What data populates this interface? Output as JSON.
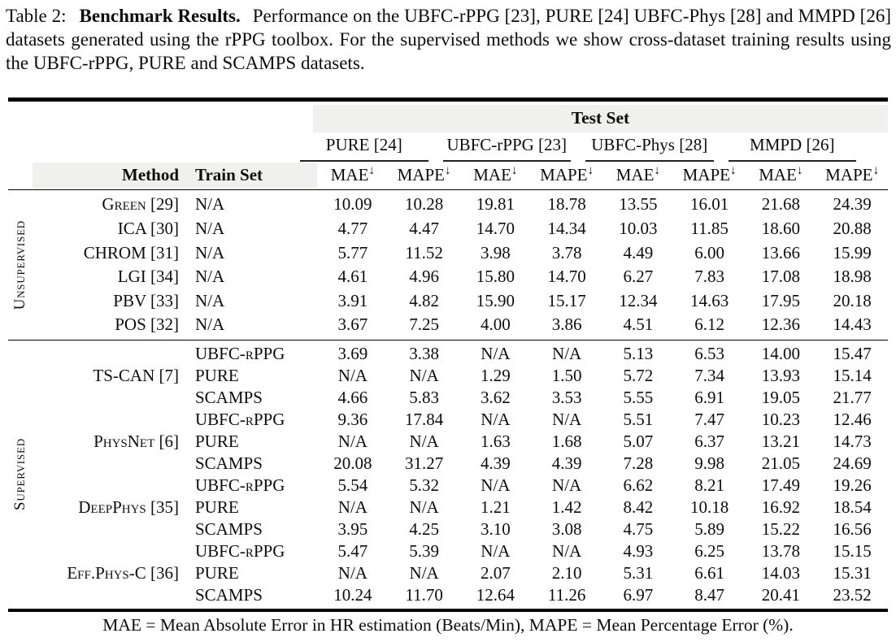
{
  "caption": {
    "label": "Table 2:",
    "title": "Benchmark Results.",
    "text": "Performance on the UBFC-rPPG [23], PURE [24] UBFC-Phys [28] and MMPD [26] datasets generated using the rPPG toolbox. For the supervised methods we show cross-dataset training results using the UBFC-rPPG, PURE and SCAMPS datasets."
  },
  "table": {
    "test_set_label": "Test Set",
    "method_header": "Method",
    "train_set_header": "Train Set",
    "datasets": [
      "PURE [24]",
      "UBFC-rPPG [23]",
      "UBFC-Phys [28]",
      "MMPD [26]"
    ],
    "metric_headers": [
      {
        "label": "MAE",
        "arrow": "↓"
      },
      {
        "label": "MAPE",
        "arrow": "↓"
      }
    ],
    "accent_colors": {
      "header_band": "#f0f0ef",
      "rule": "#000000"
    },
    "sections": [
      {
        "label": "Unsupervised",
        "groups": [
          {
            "method": "Green [29]",
            "rows": [
              {
                "train": "N/A",
                "values": [
                  "10.09",
                  "10.28",
                  "19.81",
                  "18.78",
                  "13.55",
                  "16.01",
                  "21.68",
                  "24.39"
                ]
              }
            ]
          },
          {
            "method": "ICA [30]",
            "rows": [
              {
                "train": "N/A",
                "values": [
                  "4.77",
                  "4.47",
                  "14.70",
                  "14.34",
                  "10.03",
                  "11.85",
                  "18.60",
                  "20.88"
                ]
              }
            ]
          },
          {
            "method": "CHROM [31]",
            "rows": [
              {
                "train": "N/A",
                "values": [
                  "5.77",
                  "11.52",
                  "3.98",
                  "3.78",
                  "4.49",
                  "6.00",
                  "13.66",
                  "15.99"
                ]
              }
            ]
          },
          {
            "method": "LGI [34]",
            "rows": [
              {
                "train": "N/A",
                "values": [
                  "4.61",
                  "4.96",
                  "15.80",
                  "14.70",
                  "6.27",
                  "7.83",
                  "17.08",
                  "18.98"
                ]
              }
            ]
          },
          {
            "method": "PBV [33]",
            "rows": [
              {
                "train": "N/A",
                "values": [
                  "3.91",
                  "4.82",
                  "15.90",
                  "15.17",
                  "12.34",
                  "14.63",
                  "17.95",
                  "20.18"
                ]
              }
            ]
          },
          {
            "method": "POS [32]",
            "rows": [
              {
                "train": "N/A",
                "values": [
                  "3.67",
                  "7.25",
                  "4.00",
                  "3.86",
                  "4.51",
                  "6.12",
                  "12.36",
                  "14.43"
                ]
              }
            ]
          }
        ]
      },
      {
        "label": "Supervised",
        "groups": [
          {
            "method": "TS-CAN [7]",
            "rows": [
              {
                "train": "UBFC-rPPG",
                "values": [
                  "3.69",
                  "3.38",
                  "N/A",
                  "N/A",
                  "5.13",
                  "6.53",
                  "14.00",
                  "15.47"
                ]
              },
              {
                "train": "PURE",
                "values": [
                  "N/A",
                  "N/A",
                  "1.29",
                  "1.50",
                  "5.72",
                  "7.34",
                  "13.93",
                  "15.14"
                ]
              },
              {
                "train": "SCAMPS",
                "values": [
                  "4.66",
                  "5.83",
                  "3.62",
                  "3.53",
                  "5.55",
                  "6.91",
                  "19.05",
                  "21.77"
                ]
              }
            ]
          },
          {
            "method": "PhysNet [6]",
            "rows": [
              {
                "train": "UBFC-rPPG",
                "values": [
                  "9.36",
                  "17.84",
                  "N/A",
                  "N/A",
                  "5.51",
                  "7.47",
                  "10.23",
                  "12.46"
                ]
              },
              {
                "train": "PURE",
                "values": [
                  "N/A",
                  "N/A",
                  "1.63",
                  "1.68",
                  "5.07",
                  "6.37",
                  "13.21",
                  "14.73"
                ]
              },
              {
                "train": "SCAMPS",
                "values": [
                  "20.08",
                  "31.27",
                  "4.39",
                  "4.39",
                  "7.28",
                  "9.98",
                  "21.05",
                  "24.69"
                ]
              }
            ]
          },
          {
            "method": "DeepPhys [35]",
            "rows": [
              {
                "train": "UBFC-rPPG",
                "values": [
                  "5.54",
                  "5.32",
                  "N/A",
                  "N/A",
                  "6.62",
                  "8.21",
                  "17.49",
                  "19.26"
                ]
              },
              {
                "train": "PURE",
                "values": [
                  "N/A",
                  "N/A",
                  "1.21",
                  "1.42",
                  "8.42",
                  "10.18",
                  "16.92",
                  "18.54"
                ]
              },
              {
                "train": "SCAMPS",
                "values": [
                  "3.95",
                  "4.25",
                  "3.10",
                  "3.08",
                  "4.75",
                  "5.89",
                  "15.22",
                  "16.56"
                ]
              }
            ]
          },
          {
            "method": "Eff.Phys-C [36]",
            "rows": [
              {
                "train": "UBFC-rPPG",
                "values": [
                  "5.47",
                  "5.39",
                  "N/A",
                  "N/A",
                  "4.93",
                  "6.25",
                  "13.78",
                  "15.15"
                ]
              },
              {
                "train": "PURE",
                "values": [
                  "N/A",
                  "N/A",
                  "2.07",
                  "2.10",
                  "5.31",
                  "6.61",
                  "14.03",
                  "15.31"
                ]
              },
              {
                "train": "SCAMPS",
                "values": [
                  "10.24",
                  "11.70",
                  "12.64",
                  "11.26",
                  "6.97",
                  "8.47",
                  "20.41",
                  "23.52"
                ]
              }
            ]
          }
        ]
      }
    ],
    "footnote": "MAE = Mean Absolute Error in HR estimation (Beats/Min), MAPE = Mean Percentage Error (%)."
  }
}
